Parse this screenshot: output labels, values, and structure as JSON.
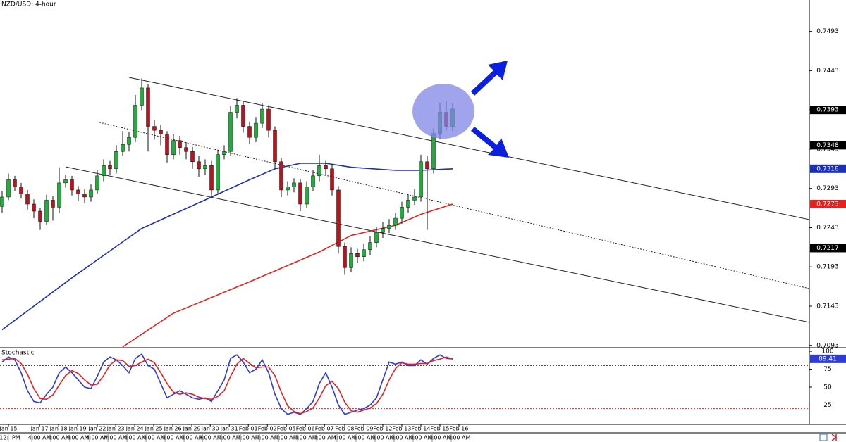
{
  "chart_data": [
    {
      "type": "candlestick",
      "title": "NZD/USD: 4-hour",
      "open": [
        0.727,
        0.7282,
        0.7304,
        0.7295,
        0.7286,
        0.7273,
        0.7264,
        0.7251,
        0.7278,
        0.7269,
        0.73,
        0.7304,
        0.7291,
        0.7286,
        0.7282,
        0.7291,
        0.7309,
        0.7322,
        0.7318,
        0.734,
        0.7349,
        0.7358,
        0.7399,
        0.7421,
        0.7372,
        0.7367,
        0.7362,
        0.7336,
        0.7354,
        0.7345,
        0.734,
        0.7327,
        0.7318,
        0.7322,
        0.7291,
        0.7336,
        0.734,
        0.739,
        0.7399,
        0.7372,
        0.7358,
        0.7376,
        0.7394,
        0.7367,
        0.7327,
        0.7291,
        0.7295,
        0.73,
        0.7273,
        0.7295,
        0.7309,
        0.7322,
        0.7318,
        0.7291,
        0.7219,
        0.7192,
        0.721,
        0.7206,
        0.7215,
        0.7224,
        0.7237,
        0.7242,
        0.7246,
        0.7255,
        0.7269,
        0.7278,
        0.7282,
        0.7327,
        0.7318,
        0.7363,
        0.739,
        0.7372
      ],
      "high": [
        0.729,
        0.7312,
        0.7309,
        0.73,
        0.7291,
        0.7279,
        0.7268,
        0.7285,
        0.7283,
        0.732,
        0.731,
        0.7309,
        0.7296,
        0.7292,
        0.7298,
        0.7316,
        0.733,
        0.7328,
        0.7348,
        0.7366,
        0.7365,
        0.7412,
        0.7433,
        0.7426,
        0.738,
        0.7374,
        0.7366,
        0.7362,
        0.736,
        0.7352,
        0.7346,
        0.7334,
        0.733,
        0.7328,
        0.7342,
        0.7348,
        0.7398,
        0.7408,
        0.7404,
        0.7378,
        0.7384,
        0.7402,
        0.7399,
        0.7372,
        0.7332,
        0.7302,
        0.7306,
        0.7305,
        0.7302,
        0.7316,
        0.7336,
        0.7328,
        0.7324,
        0.7296,
        0.7224,
        0.7218,
        0.7216,
        0.7222,
        0.7232,
        0.7244,
        0.725,
        0.7254,
        0.7262,
        0.7276,
        0.7286,
        0.7292,
        0.7336,
        0.7334,
        0.737,
        0.7402,
        0.7404,
        0.7402
      ],
      "low": [
        0.7262,
        0.7278,
        0.729,
        0.728,
        0.7266,
        0.7255,
        0.724,
        0.7246,
        0.7252,
        0.7262,
        0.7294,
        0.7284,
        0.7277,
        0.7274,
        0.7276,
        0.7286,
        0.7302,
        0.731,
        0.7312,
        0.7334,
        0.734,
        0.7352,
        0.7392,
        0.734,
        0.7355,
        0.7348,
        0.7326,
        0.733,
        0.7336,
        0.733,
        0.7318,
        0.7308,
        0.731,
        0.7283,
        0.7286,
        0.733,
        0.7334,
        0.7382,
        0.7364,
        0.735,
        0.7352,
        0.737,
        0.7358,
        0.7318,
        0.7282,
        0.7284,
        0.7288,
        0.7264,
        0.7268,
        0.729,
        0.7302,
        0.731,
        0.7284,
        0.721,
        0.7183,
        0.7186,
        0.7198,
        0.72,
        0.7208,
        0.7218,
        0.723,
        0.7236,
        0.724,
        0.7248,
        0.7262,
        0.7272,
        0.7276,
        0.724,
        0.7312,
        0.7356,
        0.7366,
        0.7366
      ],
      "close": [
        0.7282,
        0.7304,
        0.7295,
        0.7286,
        0.7273,
        0.7264,
        0.7251,
        0.7278,
        0.7269,
        0.73,
        0.7304,
        0.7291,
        0.7286,
        0.7282,
        0.7291,
        0.7309,
        0.7322,
        0.7318,
        0.734,
        0.7349,
        0.7358,
        0.7399,
        0.7421,
        0.7372,
        0.7367,
        0.7362,
        0.7336,
        0.7354,
        0.7345,
        0.734,
        0.7327,
        0.7318,
        0.7322,
        0.7291,
        0.7336,
        0.734,
        0.739,
        0.7399,
        0.7372,
        0.7358,
        0.7376,
        0.7394,
        0.7367,
        0.7327,
        0.7291,
        0.7295,
        0.73,
        0.7273,
        0.7295,
        0.7309,
        0.7322,
        0.7318,
        0.7291,
        0.7219,
        0.7192,
        0.721,
        0.7206,
        0.7215,
        0.7224,
        0.7237,
        0.7242,
        0.7246,
        0.7255,
        0.7269,
        0.7278,
        0.7282,
        0.7327,
        0.7318,
        0.7363,
        0.739,
        0.7372,
        0.7394
      ],
      "up_color": "#1fae3a",
      "down_color": "#b8141e",
      "series": [
        {
          "color": "#1c2fb8",
          "x": [
            0,
            11,
            22,
            33,
            39,
            43,
            47,
            51,
            55,
            62,
            66,
            71
          ],
          "values": [
            0.7113,
            0.7179,
            0.7242,
            0.7282,
            0.7304,
            0.7318,
            0.7325,
            0.7325,
            0.732,
            0.7316,
            0.7316,
            0.7318
          ]
        },
        {
          "color": "#e8201e",
          "x": [
            19,
            27,
            39,
            50,
            55,
            62,
            66,
            71
          ],
          "values": [
            0.7091,
            0.7134,
            0.7174,
            0.7212,
            0.7233,
            0.7246,
            0.726,
            0.7273
          ]
        }
      ],
      "ylim": [
        0.7091,
        0.7533
      ],
      "yticks": [
        0.7093,
        0.7143,
        0.7193,
        0.7243,
        0.7293,
        0.7343,
        0.7393,
        0.7443,
        0.7493
      ],
      "price_tags": [
        {
          "value": 0.7393,
          "color": "#000000"
        },
        {
          "value": 0.7348,
          "color": "#000000"
        },
        {
          "value": 0.7318,
          "color": "#1c2fb8"
        },
        {
          "value": 0.7273,
          "color": "#e8201e"
        },
        {
          "value": 0.7217,
          "color": "#000000"
        }
      ]
    },
    {
      "type": "line",
      "title": "Stochastic",
      "series": [
        {
          "color": "#2e3bd6",
          "values": [
            85,
            92,
            88,
            70,
            45,
            30,
            28,
            40,
            50,
            70,
            78,
            70,
            60,
            50,
            48,
            65,
            85,
            92,
            88,
            80,
            70,
            90,
            96,
            80,
            75,
            55,
            35,
            40,
            45,
            40,
            35,
            33,
            35,
            30,
            45,
            60,
            90,
            95,
            85,
            70,
            75,
            88,
            70,
            40,
            20,
            12,
            15,
            12,
            20,
            30,
            55,
            70,
            50,
            25,
            12,
            15,
            18,
            20,
            25,
            35,
            60,
            85,
            82,
            85,
            80,
            80,
            88,
            82,
            90,
            95,
            90,
            89.41
          ]
        },
        {
          "color": "#e8201e",
          "values": [
            88,
            89,
            90,
            83,
            68,
            48,
            34,
            33,
            39,
            53,
            66,
            73,
            69,
            60,
            53,
            54,
            66,
            81,
            88,
            87,
            79,
            80,
            85,
            89,
            84,
            70,
            55,
            43,
            40,
            42,
            40,
            36,
            34,
            33,
            37,
            45,
            65,
            82,
            90,
            83,
            77,
            78,
            78,
            66,
            43,
            24,
            16,
            13,
            16,
            21,
            35,
            52,
            58,
            48,
            29,
            17,
            15,
            18,
            21,
            27,
            40,
            60,
            76,
            84,
            82,
            82,
            83,
            83,
            87,
            89,
            92,
            89
          ]
        }
      ],
      "levels": [
        {
          "value": 80,
          "color": "#3a3ad0"
        },
        {
          "value": 20,
          "color": "#e8201e"
        }
      ],
      "ylim": [
        -2,
        104
      ],
      "yticks": [
        25,
        50,
        75,
        100
      ],
      "xticks": [
        {
          "value": 1,
          "label": "Jan 15"
        },
        {
          "value": 5.9,
          "label": "Jan 17"
        },
        {
          "value": 8.9,
          "label": "Jan 18"
        },
        {
          "value": 11.9,
          "label": "Jan 19"
        },
        {
          "value": 15,
          "label": "Jan 22"
        },
        {
          "value": 17.9,
          "label": "Jan 23"
        },
        {
          "value": 20.9,
          "label": "Jan 24"
        },
        {
          "value": 23.9,
          "label": "Jan 25"
        },
        {
          "value": 26.9,
          "label": "Jan 26"
        },
        {
          "value": 29.9,
          "label": "Jan 29"
        },
        {
          "value": 32.8,
          "label": "Jan 30"
        },
        {
          "value": 35.8,
          "label": "Jan 31"
        },
        {
          "value": 38.8,
          "label": "Feb 01"
        },
        {
          "value": 41.8,
          "label": "Feb 02"
        },
        {
          "value": 44.8,
          "label": "Feb 05"
        },
        {
          "value": 47.8,
          "label": "Feb 06"
        },
        {
          "value": 50.8,
          "label": "Feb 07"
        },
        {
          "value": 54,
          "label": "Feb 08"
        },
        {
          "value": 57,
          "label": "Feb 09"
        },
        {
          "value": 60,
          "label": "Feb 12"
        },
        {
          "value": 63,
          "label": "Feb 13"
        },
        {
          "value": 66,
          "label": "Feb 14"
        },
        {
          "value": 69,
          "label": "Feb 15"
        },
        {
          "value": 72,
          "label": "Feb 16"
        }
      ],
      "xticks2": [
        {
          "value": 0.3,
          "label": "12:"
        },
        {
          "value": 2.2,
          "label": "PM"
        },
        {
          "value": 5.9,
          "label": "4:00 AM"
        },
        {
          "value": 8.9,
          "label": "4:00 AM"
        },
        {
          "value": 11.9,
          "label": "4:00 AM"
        },
        {
          "value": 15,
          "label": "4:00 AM"
        },
        {
          "value": 17.9,
          "label": "4:00 AM"
        },
        {
          "value": 20.9,
          "label": "4:00 AM"
        },
        {
          "value": 23.9,
          "label": "4:00 AM"
        },
        {
          "value": 26.9,
          "label": "4:00 AM"
        },
        {
          "value": 29.9,
          "label": "4:00 AM"
        },
        {
          "value": 32.8,
          "label": "4:00 AM"
        },
        {
          "value": 35.8,
          "label": "4:00 AM"
        },
        {
          "value": 38.8,
          "label": "4:00 AM"
        },
        {
          "value": 41.8,
          "label": "4:00 AM"
        },
        {
          "value": 44.8,
          "label": "4:00 AM"
        },
        {
          "value": 47.8,
          "label": "4:00 AM"
        },
        {
          "value": 50.8,
          "label": "4:00 AM"
        },
        {
          "value": 54,
          "label": "4:00 AM"
        },
        {
          "value": 57,
          "label": "4:00 AM"
        },
        {
          "value": 60,
          "label": "4:00 AM"
        },
        {
          "value": 63,
          "label": "4:00 AM"
        },
        {
          "value": 66,
          "label": "4:00 AM"
        },
        {
          "value": 69,
          "label": "4:00 AM"
        },
        {
          "value": 72,
          "label": "4:00 AM"
        }
      ]
    }
  ]
}
